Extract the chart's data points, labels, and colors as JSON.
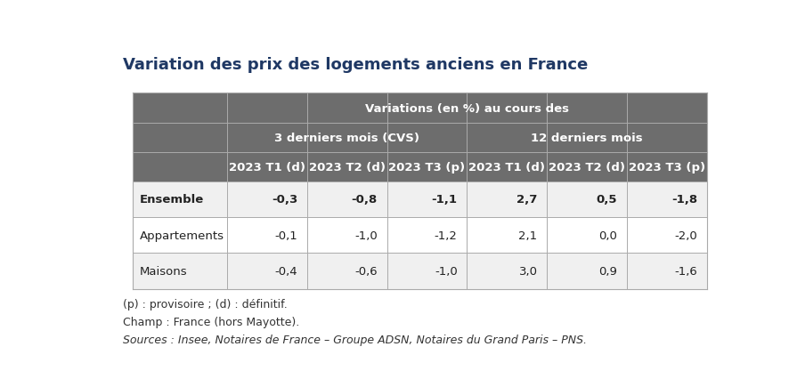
{
  "title": "Variation des prix des logements anciens en France",
  "title_color": "#1f3864",
  "title_fontsize": 13,
  "header1_text": "Variations (en %) au cours des",
  "header2_left": "3 derniers mois (CVS)",
  "header2_right": "12 derniers mois",
  "col_headers": [
    "2023 T1 (d)",
    "2023 T2 (d)",
    "2023 T3 (p)",
    "2023 T1 (d)",
    "2023 T2 (d)",
    "2023 T3 (p)"
  ],
  "row_labels": [
    "Ensemble",
    "Appartements",
    "Maisons"
  ],
  "row_bold": [
    true,
    false,
    false
  ],
  "data": [
    [
      "-0,3",
      "-0,8",
      "-1,1",
      "2,7",
      "0,5",
      "-1,8"
    ],
    [
      "-0,1",
      "-1,0",
      "-1,2",
      "2,1",
      "0,0",
      "-2,0"
    ],
    [
      "-0,4",
      "-0,6",
      "-1,0",
      "3,0",
      "0,9",
      "-1,6"
    ]
  ],
  "footer_lines": [
    "(p) : provisoire ; (d) : définitif.",
    "Champ : France (hors Mayotte).",
    "Sources : Insee, Notaires de France – Groupe ADSN, Notaires du Grand Paris – PNS."
  ],
  "footer_italic": [
    false,
    false,
    true
  ],
  "header_bg": "#6d6d6d",
  "header_text_color": "#ffffff",
  "row_bg_0": "#f0f0f0",
  "row_bg_1": "#ffffff",
  "row_bg_2": "#f0f0f0",
  "line_color": "#aaaaaa",
  "background_color": "#ffffff",
  "header_fontsize": 9.5,
  "data_fontsize": 9.5,
  "footer_fontsize": 9
}
